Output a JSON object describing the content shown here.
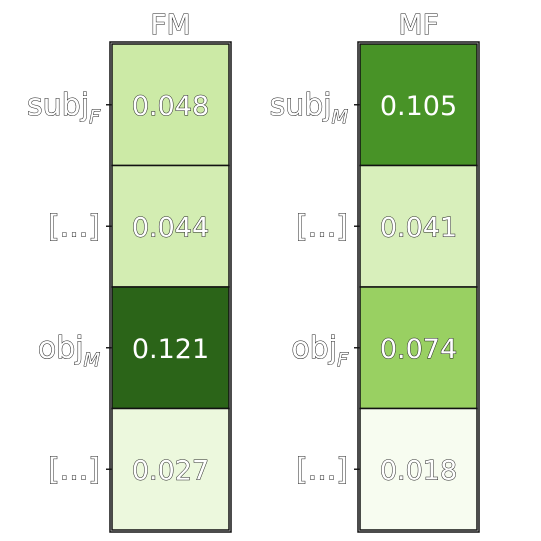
{
  "chart_data": [
    {
      "type": "heatmap",
      "title": "FM",
      "rows": [
        {
          "label": "subj",
          "subscript": "F",
          "value": 0.048,
          "value_text": "0.048"
        },
        {
          "label": "[...]",
          "subscript": "",
          "value": 0.044,
          "value_text": "0.044"
        },
        {
          "label": "obj",
          "subscript": "M",
          "value": 0.121,
          "value_text": "0.121"
        },
        {
          "label": "[...]",
          "subscript": "",
          "value": 0.027,
          "value_text": "0.027"
        }
      ]
    },
    {
      "type": "heatmap",
      "title": "MF",
      "rows": [
        {
          "label": "subj",
          "subscript": "M",
          "value": 0.105,
          "value_text": "0.105"
        },
        {
          "label": "[...]",
          "subscript": "",
          "value": 0.041,
          "value_text": "0.041"
        },
        {
          "label": "obj",
          "subscript": "F",
          "value": 0.074,
          "value_text": "0.074"
        },
        {
          "label": "[...]",
          "subscript": "",
          "value": 0.018,
          "value_text": "0.018"
        }
      ]
    }
  ],
  "colors": {
    "scale": [
      "#f7fcf0",
      "#e2f4cc",
      "#c4e699",
      "#a3d76e",
      "#7cbc40",
      "#4a9628",
      "#2b6418"
    ],
    "value_range": [
      0.018,
      0.121
    ],
    "dark_text": "#ffffff",
    "light_text": "#ffffff"
  }
}
